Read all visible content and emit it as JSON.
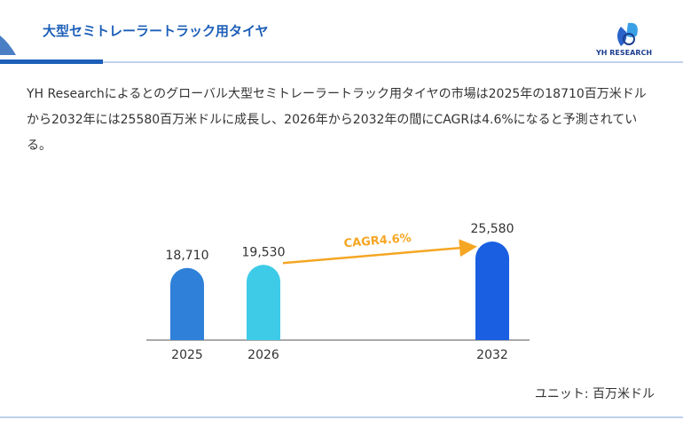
{
  "header": {
    "title": "大型セミトレーラートラック用タイヤ",
    "logo": "YH RESEARCH"
  },
  "description": "YH Researchによるとのグローバル大型セミトレーラートラック用タイヤの市場は2025年の18710百万米ドルから2032年には25580百万米ドルに成長し、2026年から2032年の間にCAGRは4.6%になると予測されている。",
  "unit": "ユニット: 百万米ドル",
  "chart_data": {
    "type": "bar",
    "categories": [
      "2025",
      "2026",
      "2032"
    ],
    "values": [
      18710,
      19530,
      25580
    ],
    "value_labels": [
      "18,710",
      "19,530",
      "25,580"
    ],
    "colors": [
      "#2f80d8",
      "#3ecbe8",
      "#1a5fe2"
    ],
    "annotation": "CAGR4.6%"
  }
}
